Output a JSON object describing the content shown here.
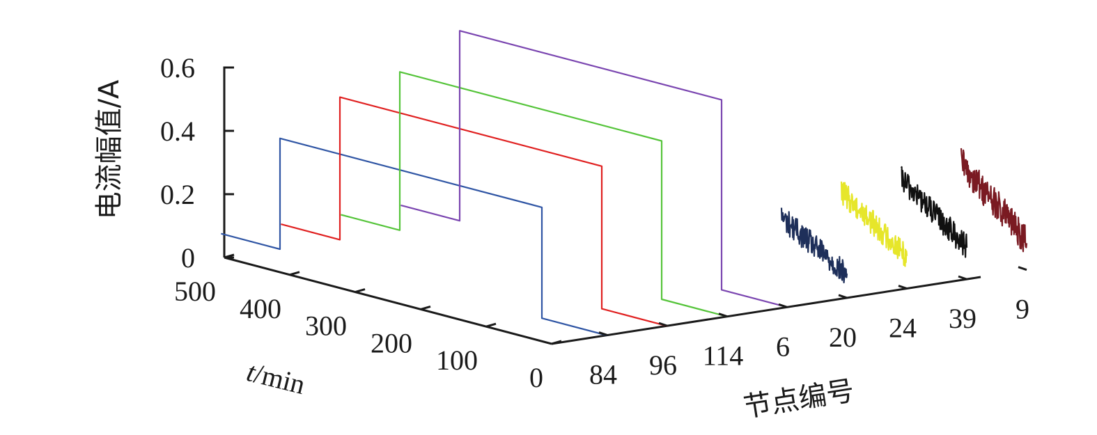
{
  "chart_data": {
    "type": "line",
    "projection": "3d",
    "title": "",
    "zlabel": "电流幅值/A",
    "xlabel_italic": "t",
    "xlabel_rest": "/min",
    "ylabel": "节点编号",
    "z_ticks": [
      "0.6",
      "0.4",
      "0.2",
      "0"
    ],
    "t_ticks": [
      "500",
      "400",
      "300",
      "200",
      "100",
      "0"
    ],
    "node_ticks": [
      "84",
      "96",
      "114",
      "6",
      "20",
      "24",
      "39",
      "9"
    ],
    "z_range": [
      0,
      0.6
    ],
    "t_range": [
      0,
      500
    ],
    "series": [
      {
        "node": "84",
        "color": "#2f55a4",
        "kind": "step",
        "t_step": 100,
        "value_low": 0,
        "value_high": 0.35
      },
      {
        "node": "96",
        "color": "#e02020",
        "kind": "step",
        "t_step": 100,
        "value_low": 0,
        "value_high": 0.45
      },
      {
        "node": "114",
        "color": "#55c43a",
        "kind": "step",
        "t_step": 100,
        "value_low": 0,
        "value_high": 0.5
      },
      {
        "node": "6",
        "color": "#7a45b0",
        "kind": "step",
        "t_step": 100,
        "value_low": 0,
        "value_high": 0.6
      },
      {
        "node": "20",
        "color": "#1e2f5a",
        "kind": "noise",
        "t_start": 100,
        "t_end": 0,
        "value_start": 0.2,
        "value_end": 0.07,
        "amplitude": 0.04
      },
      {
        "node": "24",
        "color": "#e6e62a",
        "kind": "noise",
        "t_start": 100,
        "t_end": 0,
        "value_start": 0.25,
        "value_end": 0.1,
        "amplitude": 0.04
      },
      {
        "node": "39",
        "color": "#111111",
        "kind": "noise",
        "t_start": 100,
        "t_end": 0,
        "value_start": 0.26,
        "value_end": 0.1,
        "amplitude": 0.04
      },
      {
        "node": "9",
        "color": "#7a1a22",
        "kind": "noise",
        "t_start": 100,
        "t_end": 0,
        "value_start": 0.28,
        "value_end": 0.09,
        "amplitude": 0.05
      }
    ]
  }
}
